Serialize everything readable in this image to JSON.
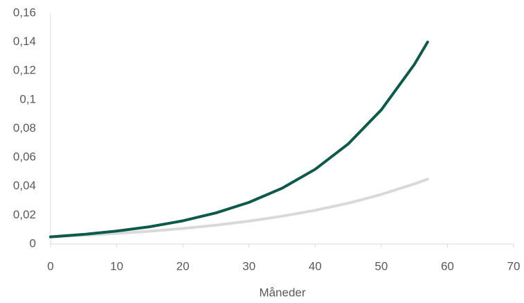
{
  "chart_data": {
    "type": "line",
    "x_label": "Måneder",
    "x": [
      0,
      5,
      10,
      15,
      20,
      25,
      30,
      35,
      40,
      45,
      50,
      55,
      57
    ],
    "series": [
      {
        "color": "#d9d9d9",
        "values": [
          0.005,
          0.0061,
          0.0074,
          0.0089,
          0.0108,
          0.0131,
          0.0159,
          0.0193,
          0.0234,
          0.0283,
          0.0344,
          0.0417,
          0.045
        ]
      },
      {
        "color": "#0b5a4a",
        "values": [
          0.005,
          0.0067,
          0.009,
          0.012,
          0.0161,
          0.0216,
          0.0289,
          0.0387,
          0.0518,
          0.0694,
          0.093,
          0.1245,
          0.14
        ]
      }
    ],
    "xlim": [
      0,
      70
    ],
    "xticks": [
      0,
      10,
      20,
      30,
      40,
      50,
      60,
      70
    ],
    "ylim": [
      0,
      0.16
    ],
    "yticks": [
      0,
      {
        "value": 0.02,
        "label": "0,02"
      },
      {
        "value": 0.04,
        "label": "0,04"
      },
      {
        "value": 0.06,
        "label": "0,06"
      },
      {
        "value": 0.08,
        "label": "0,08"
      },
      {
        "value": 0.1,
        "label": "0,1"
      },
      {
        "value": 0.12,
        "label": "0,12"
      },
      {
        "value": 0.14,
        "label": "0,14"
      },
      {
        "value": 0.16,
        "label": "0,16"
      }
    ],
    "grid": false
  }
}
